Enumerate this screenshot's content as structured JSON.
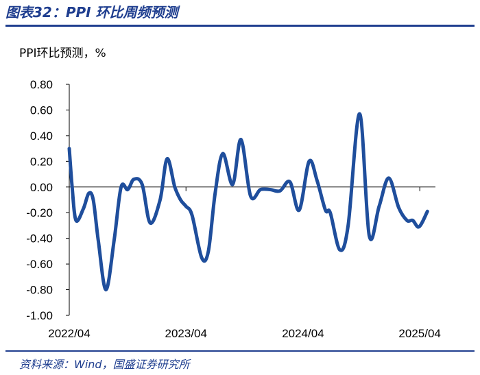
{
  "header": {
    "title": "图表32：PPI 环比周频预测"
  },
  "footer": {
    "source": "资料来源：Wind，国盛证券研究所"
  },
  "colors": {
    "accent": "#1f3e8f",
    "series": "#1f4e9c",
    "axis": "#000000"
  },
  "chart_data": {
    "type": "line",
    "title": "PPI环比预测，%",
    "xlabel": "",
    "ylabel": "",
    "ylim": [
      -1.0,
      0.8
    ],
    "yticks": [
      0.8,
      0.6,
      0.4,
      0.2,
      0.0,
      -0.2,
      -0.4,
      -0.6,
      -0.8,
      -1.0
    ],
    "ytick_labels": [
      "0.80",
      "0.60",
      "0.40",
      "0.20",
      "0.00",
      "-0.20",
      "-0.40",
      "-0.60",
      "-0.80",
      "-1.00"
    ],
    "x_tick_labels": [
      "2022/04",
      "2023/04",
      "2024/04",
      "2025/04"
    ],
    "x_tick_dates": [
      "2022-04-01",
      "2023-04-01",
      "2024-04-01",
      "2025-04-01"
    ],
    "xlim": [
      "2022-04-01",
      "2025-05-20"
    ],
    "grid": false,
    "series": [
      {
        "values": [
          [
            "2022-04-01",
            0.3
          ],
          [
            "2022-04-10",
            0.0
          ],
          [
            "2022-04-22",
            -0.26
          ],
          [
            "2022-05-15",
            -0.17
          ],
          [
            "2022-06-01",
            -0.05
          ],
          [
            "2022-06-15",
            -0.1
          ],
          [
            "2022-07-01",
            -0.42
          ],
          [
            "2022-07-25",
            -0.8
          ],
          [
            "2022-08-20",
            -0.4
          ],
          [
            "2022-09-10",
            0.0
          ],
          [
            "2022-10-01",
            -0.02
          ],
          [
            "2022-10-20",
            0.06
          ],
          [
            "2022-11-15",
            0.02
          ],
          [
            "2022-12-10",
            -0.28
          ],
          [
            "2023-01-10",
            -0.1
          ],
          [
            "2023-02-01",
            0.22
          ],
          [
            "2023-02-25",
            0.0
          ],
          [
            "2023-03-15",
            -0.1
          ],
          [
            "2023-04-01",
            -0.15
          ],
          [
            "2023-04-20",
            -0.22
          ],
          [
            "2023-05-20",
            -0.55
          ],
          [
            "2023-06-10",
            -0.5
          ],
          [
            "2023-07-01",
            -0.05
          ],
          [
            "2023-07-25",
            0.26
          ],
          [
            "2023-08-25",
            0.02
          ],
          [
            "2023-09-20",
            0.37
          ],
          [
            "2023-10-20",
            -0.07
          ],
          [
            "2023-11-20",
            -0.02
          ],
          [
            "2023-12-20",
            -0.02
          ],
          [
            "2024-01-20",
            -0.03
          ],
          [
            "2024-02-20",
            0.04
          ],
          [
            "2024-03-20",
            -0.18
          ],
          [
            "2024-04-20",
            0.2
          ],
          [
            "2024-05-15",
            0.05
          ],
          [
            "2024-06-10",
            -0.18
          ],
          [
            "2024-06-25",
            -0.2
          ],
          [
            "2024-07-25",
            -0.49
          ],
          [
            "2024-08-20",
            -0.3
          ],
          [
            "2024-09-25",
            0.57
          ],
          [
            "2024-10-25",
            -0.38
          ],
          [
            "2024-11-25",
            -0.15
          ],
          [
            "2024-12-25",
            0.07
          ],
          [
            "2025-01-25",
            -0.16
          ],
          [
            "2025-02-20",
            -0.26
          ],
          [
            "2025-03-10",
            -0.26
          ],
          [
            "2025-03-30",
            -0.31
          ],
          [
            "2025-04-25",
            -0.19
          ]
        ]
      }
    ]
  }
}
